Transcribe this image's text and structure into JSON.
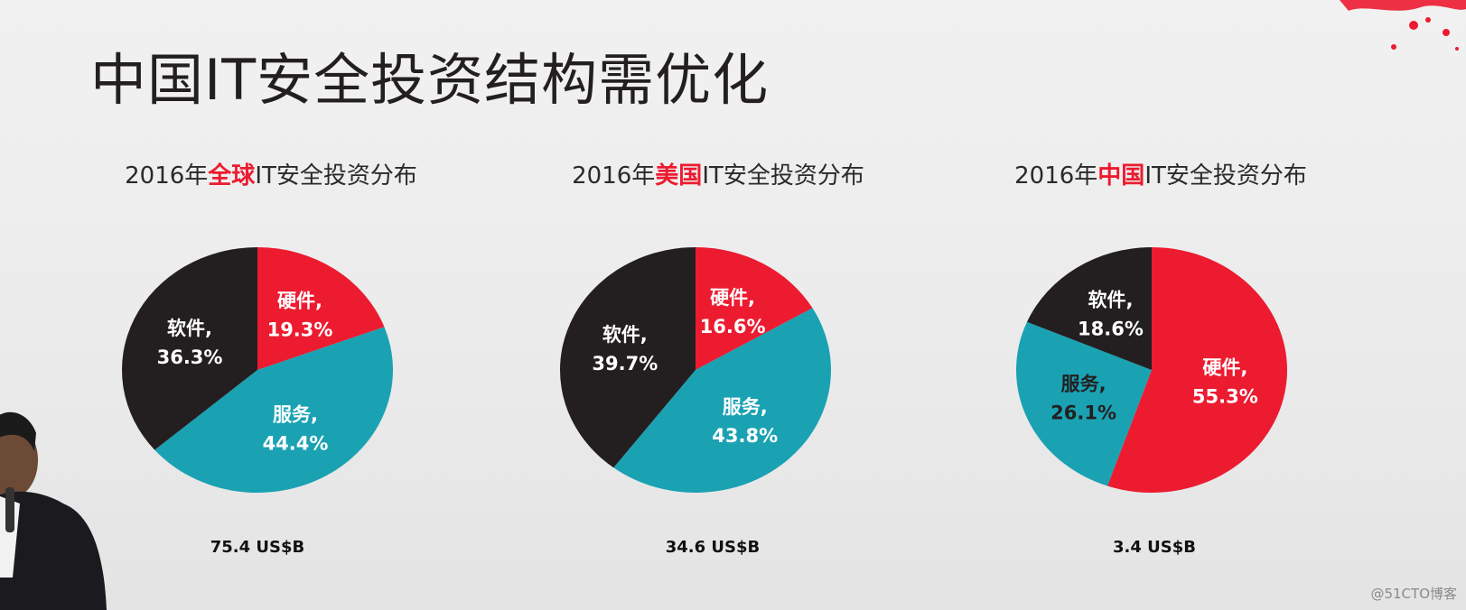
{
  "slide_title": "中国IT安全投资结构需优化",
  "watermark": "@51CTO博客",
  "colors": {
    "hardware": "#ec1b30",
    "software": "#231f20",
    "services": "#1aa2b3",
    "accent": "#ec1b30"
  },
  "chart_data": [
    {
      "type": "pie",
      "title_prefix": "2016年",
      "title_region": "全球",
      "title_suffix": "IT安全投资分布",
      "total": "75.4 US$B",
      "slices": [
        {
          "label": "硬件,",
          "value": 19.3,
          "value_text": "19.3%",
          "color": "#ec1b30",
          "text_color": "#ffffff"
        },
        {
          "label": "服务,",
          "value": 44.4,
          "value_text": "44.4%",
          "color": "#1aa2b3",
          "text_color": "#ffffff"
        },
        {
          "label": "软件,",
          "value": 36.3,
          "value_text": "36.3%",
          "color": "#231f20",
          "text_color": "#ffffff"
        }
      ]
    },
    {
      "type": "pie",
      "title_prefix": "2016年",
      "title_region": "美国",
      "title_suffix": "IT安全投资分布",
      "total": "34.6 US$B",
      "slices": [
        {
          "label": "硬件,",
          "value": 16.6,
          "value_text": "16.6%",
          "color": "#ec1b30",
          "text_color": "#ffffff"
        },
        {
          "label": "服务,",
          "value": 43.8,
          "value_text": "43.8%",
          "color": "#1aa2b3",
          "text_color": "#ffffff"
        },
        {
          "label": "软件,",
          "value": 39.7,
          "value_text": "39.7%",
          "color": "#231f20",
          "text_color": "#ffffff"
        }
      ]
    },
    {
      "type": "pie",
      "title_prefix": "2016年",
      "title_region": "中国",
      "title_suffix": "IT安全投资分布",
      "total": "3.4 US$B",
      "slices": [
        {
          "label": "硬件,",
          "value": 55.3,
          "value_text": "55.3%",
          "color": "#ec1b30",
          "text_color": "#ffffff"
        },
        {
          "label": "服务,",
          "value": 26.1,
          "value_text": "26.1%",
          "color": "#1aa2b3",
          "text_color": "#231f20"
        },
        {
          "label": "软件,",
          "value": 18.6,
          "value_text": "18.6%",
          "color": "#231f20",
          "text_color": "#ffffff"
        }
      ]
    }
  ]
}
